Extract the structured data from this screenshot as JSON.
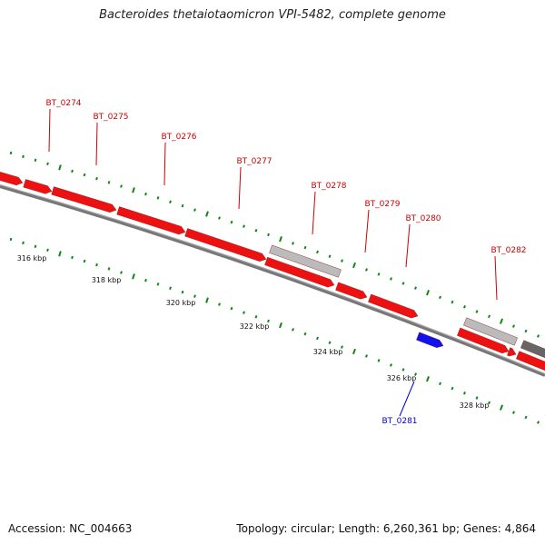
{
  "title": "Bacteroides thetaiotaomicron VPI-5482, complete genome",
  "footer": {
    "accession_label": "Accession:",
    "accession": "NC_004663",
    "topology_label": "Topology:",
    "topology": "circular",
    "length_label": "Length:",
    "length": "6,260,361 bp",
    "genes_label": "Genes:",
    "genes": "4,864"
  },
  "colors": {
    "forward_gene": "#ee1111",
    "reverse_gene": "#1111ee",
    "other_feature": "#bbbbbb",
    "dark_feature": "#666666",
    "backbone": "#777777",
    "scale_ticks": "#118811",
    "forward_label": "#cc0000",
    "reverse_label": "#0000cc"
  },
  "scale_labels": [
    "316 kbp",
    "318 kbp",
    "320 kbp",
    "322 kbp",
    "324 kbp",
    "326 kbp",
    "328 kbp"
  ],
  "gene_labels": {
    "forward": [
      "BT_0274",
      "BT_0275",
      "BT_0276",
      "BT_0277",
      "BT_0278",
      "BT_0279",
      "BT_0280",
      "BT_0282"
    ],
    "reverse": [
      "BT_0281"
    ]
  }
}
